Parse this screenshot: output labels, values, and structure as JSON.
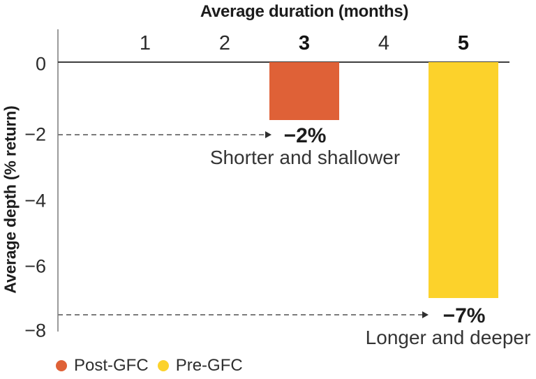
{
  "chart_data": {
    "type": "bar",
    "title": "Average duration (months)",
    "top_axis_title": "Average duration (months)",
    "y_axis_title": "Average depth (% return)",
    "x_ticks": [
      "1",
      "2",
      "3",
      "4",
      "5"
    ],
    "x_ticks_bold": [
      "3",
      "5"
    ],
    "y_ticks": [
      "0",
      "−2",
      "−4",
      "−6",
      "−8"
    ],
    "ylim": [
      -8,
      0
    ],
    "grid": false,
    "legend_position": "bottom-left",
    "series": [
      {
        "name": "Post-GFC",
        "duration_months": 3,
        "depth_pct": -2,
        "depth_label": "−2%",
        "annotation": "Shorter and shallower",
        "rendered_depth": -1.72,
        "color": "#DF6137"
      },
      {
        "name": "Pre-GFC",
        "duration_months": 5,
        "depth_pct": -7,
        "depth_label": "−7%",
        "annotation": "Longer and deeper",
        "rendered_depth": -7.0,
        "color": "#FCD22B"
      }
    ]
  }
}
